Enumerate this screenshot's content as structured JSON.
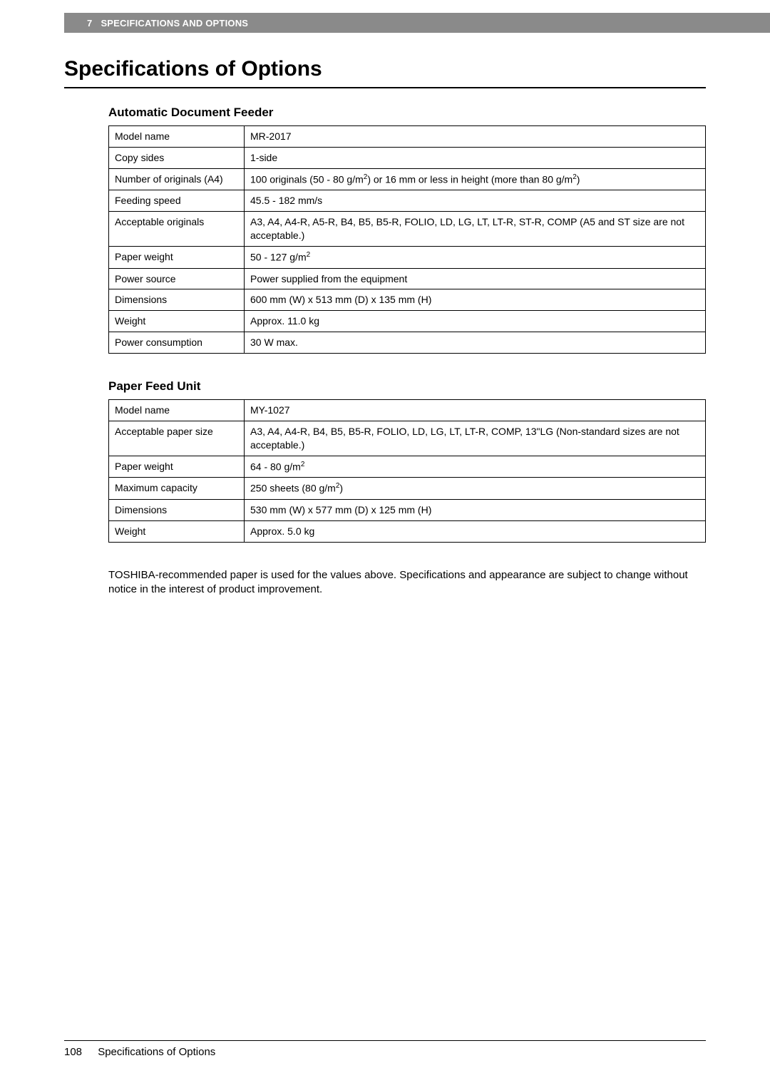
{
  "header": {
    "chapter_num": "7",
    "chapter_title": "SPECIFICATIONS AND OPTIONS"
  },
  "main_title": "Specifications of Options",
  "section1": {
    "title": "Automatic Document Feeder",
    "rows": [
      {
        "label": "Model name",
        "value": "MR-2017"
      },
      {
        "label": "Copy sides",
        "value": "1-side"
      },
      {
        "label": "Number of originals (A4)",
        "value": "100 originals (50 - 80 g/m²) or 16 mm or less in height (more than 80 g/m²)",
        "sup": true
      },
      {
        "label": "Feeding speed",
        "value": "45.5 - 182 mm/s"
      },
      {
        "label": "Acceptable originals",
        "value": "A3, A4, A4-R, A5-R, B4, B5, B5-R, FOLIO, LD, LG, LT, LT-R, ST-R, COMP (A5 and ST size are not acceptable.)"
      },
      {
        "label": "Paper weight",
        "value": "50 - 127 g/m²",
        "sup_single": true
      },
      {
        "label": "Power source",
        "value": "Power supplied from the equipment"
      },
      {
        "label": "Dimensions",
        "value": "600 mm (W) x 513 mm (D) x 135 mm (H)"
      },
      {
        "label": "Weight",
        "value": "Approx. 11.0 kg"
      },
      {
        "label": "Power consumption",
        "value": "30 W max."
      }
    ]
  },
  "section2": {
    "title": "Paper Feed Unit",
    "rows": [
      {
        "label": "Model name",
        "value": "MY-1027"
      },
      {
        "label": "Acceptable paper size",
        "value": "A3, A4, A4-R, B4, B5, B5-R, FOLIO, LD, LG, LT, LT-R, COMP, 13\"LG (Non-standard sizes are not acceptable.)"
      },
      {
        "label": "Paper weight",
        "value": "64 - 80 g/m²",
        "sup_single": true
      },
      {
        "label": "Maximum capacity",
        "value": "250 sheets (80 g/m²)",
        "sup_single": true
      },
      {
        "label": "Dimensions",
        "value": "530 mm (W) x 577 mm (D) x 125 mm (H)"
      },
      {
        "label": "Weight",
        "value": "Approx. 5.0 kg"
      }
    ]
  },
  "note_text": "TOSHIBA-recommended paper is used for the values above. Specifications and appearance are subject to change without notice in the interest of product improvement.",
  "footer": {
    "page_number": "108",
    "footer_text": "Specifications of Options"
  }
}
